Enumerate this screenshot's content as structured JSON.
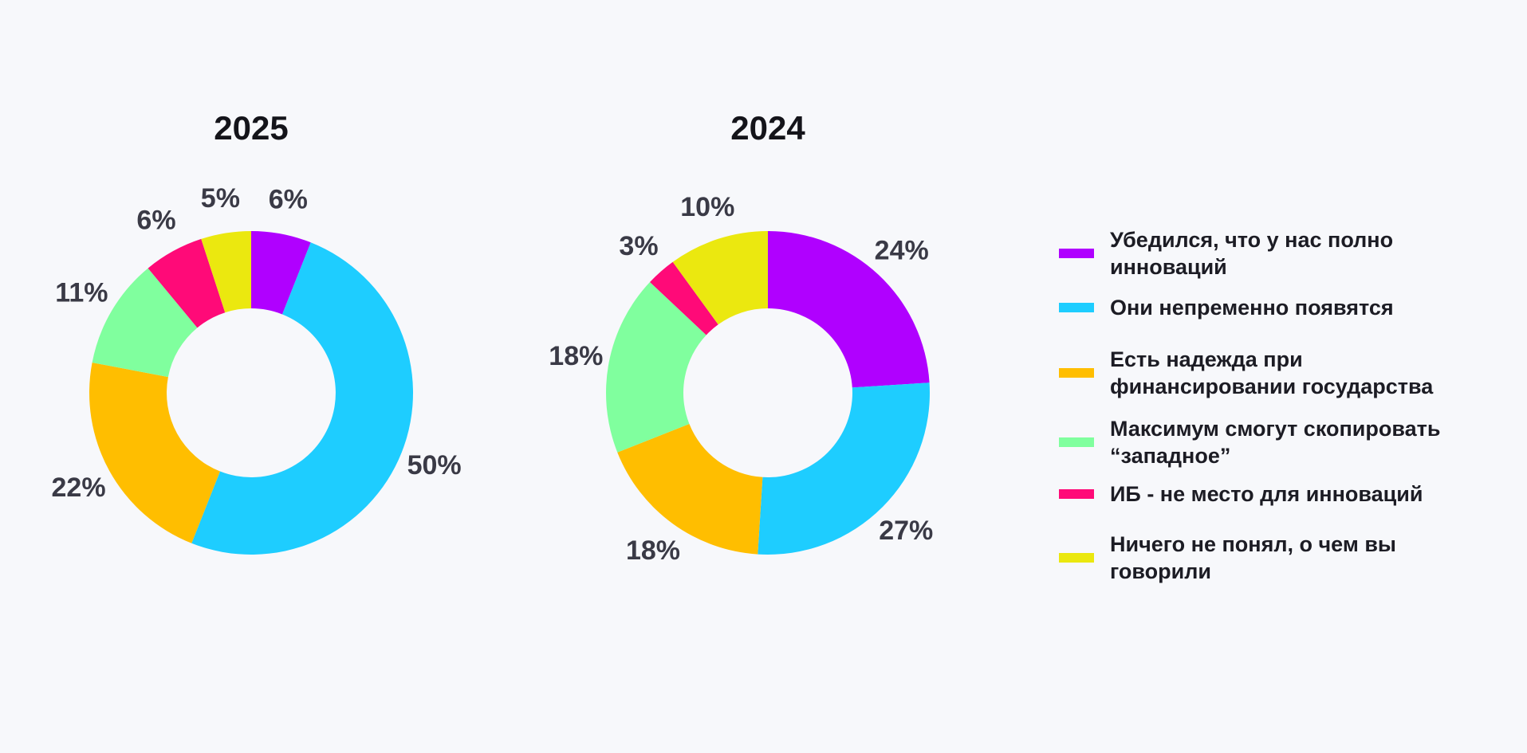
{
  "colors": {
    "background": "#f7f8fb",
    "categories": [
      "#b000ff",
      "#1ecdff",
      "#ffbe00",
      "#80ff9e",
      "#ff0a78",
      "#ebe80f"
    ]
  },
  "legend": [
    {
      "label": "Убедился, что у нас полно инноваций",
      "color": "#b000ff"
    },
    {
      "label": "Они непременно появятся",
      "color": "#1ecdff"
    },
    {
      "label": "Есть надежда при финансировании государства",
      "color": "#ffbe00"
    },
    {
      "label": "Максимум смогут скопировать “западное”",
      "color": "#80ff9e"
    },
    {
      "label": "ИБ - не место для инноваций",
      "color": "#ff0a78"
    },
    {
      "label": "Ничего не понял, о чем вы говорили",
      "color": "#ebe80f"
    }
  ],
  "chart_data": [
    {
      "type": "pie",
      "donut": true,
      "title": "2025",
      "categories": [
        "Убедился, что у нас полно инноваций",
        "Они непременно появятся",
        "Есть надежда при финансировании государства",
        "Максимум смогут скопировать “западное”",
        "ИБ - не место для инноваций",
        "Ничего не понял, о чем вы говорили"
      ],
      "values": [
        6,
        50,
        22,
        11,
        6,
        5
      ],
      "labels": [
        "6%",
        "50%",
        "22%",
        "11%",
        "6%",
        "5%"
      ],
      "legend_position": "right"
    },
    {
      "type": "pie",
      "donut": true,
      "title": "2024",
      "categories": [
        "Убедился, что у нас полно инноваций",
        "Они непременно появятся",
        "Есть надежда при финансировании государства",
        "Максимум смогут скопировать “западное”",
        "ИБ - не место для инноваций",
        "Ничего не понял, о чем вы говорили"
      ],
      "values": [
        24,
        27,
        18,
        18,
        3,
        10
      ],
      "labels": [
        "24%",
        "27%",
        "18%",
        "18%",
        "3%",
        "10%"
      ],
      "legend_position": "right"
    }
  ]
}
